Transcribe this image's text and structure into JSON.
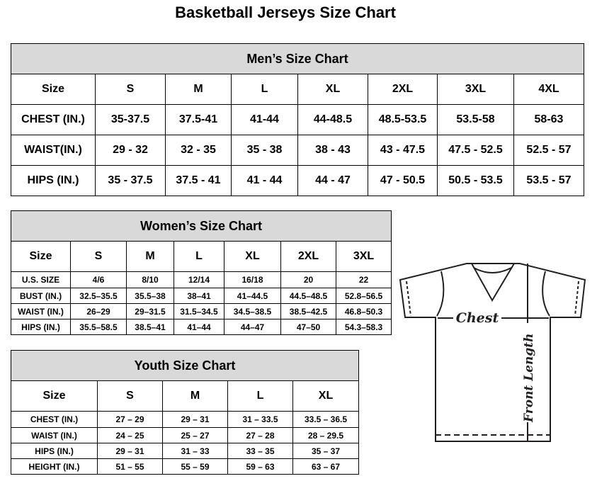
{
  "title": "Basketball Jerseys Size Chart",
  "men": {
    "heading": "Men’s Size Chart",
    "rows": [
      [
        "Size",
        "S",
        "M",
        "L",
        "XL",
        "2XL",
        "3XL",
        "4XL"
      ],
      [
        "CHEST (IN.)",
        "35-37.5",
        "37.5-41",
        "41-44",
        "44-48.5",
        "48.5-53.5",
        "53.5-58",
        "58-63"
      ],
      [
        "WAIST(IN.)",
        "29 - 32",
        "32 - 35",
        "35 - 38",
        "38 - 43",
        "43 - 47.5",
        "47.5 - 52.5",
        "52.5 - 57"
      ],
      [
        "HIPS (IN.)",
        "35 - 37.5",
        "37.5 - 41",
        "41 - 44",
        "44 - 47",
        "47 - 50.5",
        "50.5 - 53.5",
        "53.5 - 57"
      ]
    ]
  },
  "women": {
    "heading": "Women’s Size Chart",
    "rows": [
      [
        "Size",
        "S",
        "M",
        "L",
        "XL",
        "2XL",
        "3XL"
      ],
      [
        "U.S. SIZE",
        "4/6",
        "8/10",
        "12/14",
        "16/18",
        "20",
        "22"
      ],
      [
        "BUST (IN.)",
        "32.5–35.5",
        "35.5–38",
        "38–41",
        "41–44.5",
        "44.5–48.5",
        "52.8–56.5"
      ],
      [
        "WAIST (IN.)",
        "26–29",
        "29–31.5",
        "31.5–34.5",
        "34.5–38.5",
        "38.5–42.5",
        "46.8–50.3"
      ],
      [
        "HIPS (IN.)",
        "35.5–58.5",
        "38.5–41",
        "41–44",
        "44–47",
        "47–50",
        "54.3–58.3"
      ]
    ]
  },
  "youth": {
    "heading": "Youth Size Chart",
    "rows": [
      [
        "Size",
        "S",
        "M",
        "L",
        "XL"
      ],
      [
        "CHEST (IN.)",
        "27 – 29",
        "29 – 31",
        "31 – 33.5",
        "33.5 – 36.5"
      ],
      [
        "WAIST (IN.)",
        "24 – 25",
        "25 – 27",
        "27 – 28",
        "28 – 29.5"
      ],
      [
        "HIPS (IN.)",
        "29 – 31",
        "31 – 33",
        "33 – 35",
        "35 – 37"
      ],
      [
        "HEIGHT (IN.)",
        "51 – 55",
        "55 – 59",
        "59 – 63",
        "63 – 67"
      ]
    ]
  },
  "diagram": {
    "chest_label": "Chest",
    "length_label": "Front Length"
  }
}
